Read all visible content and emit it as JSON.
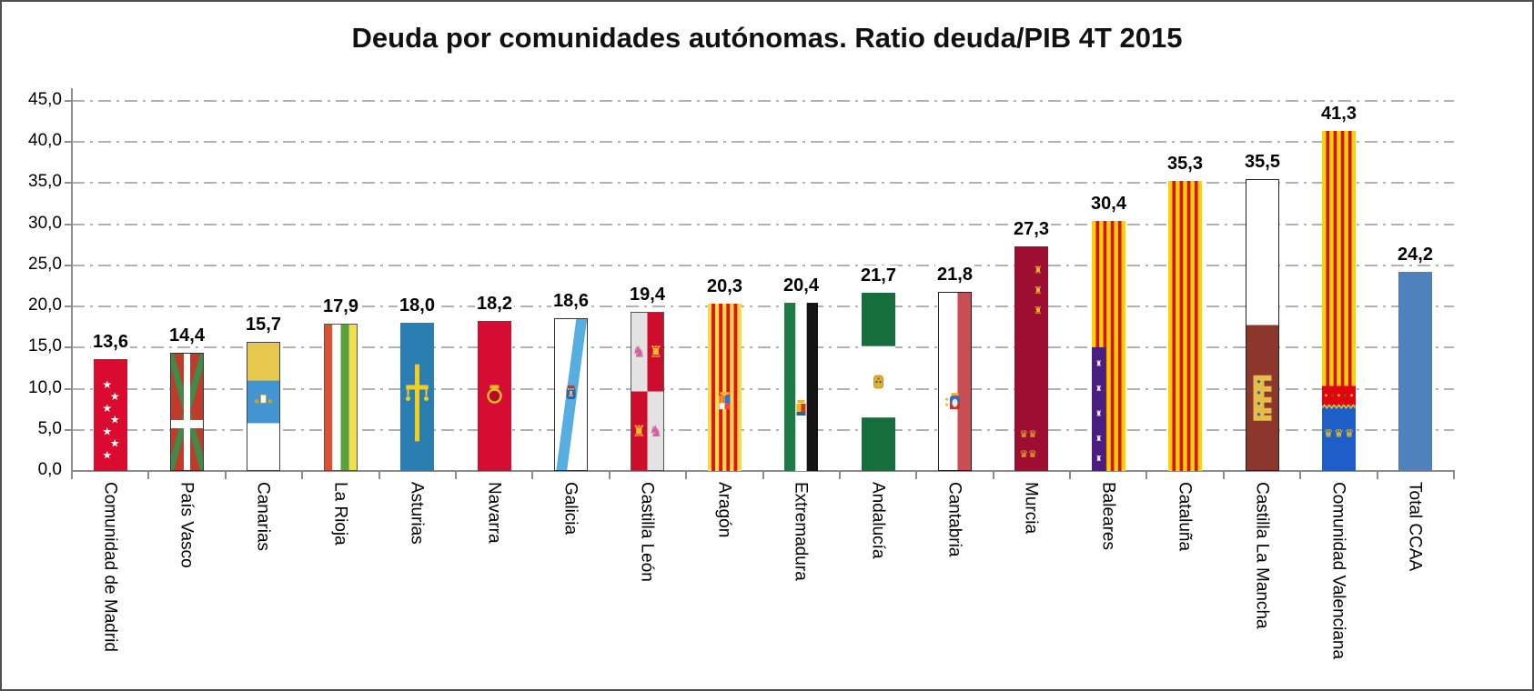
{
  "chart_data": {
    "type": "bar",
    "title": "Deuda por comunidades autónomas. Ratio deuda/PIB 4T 2015",
    "xlabel": "",
    "ylabel": "",
    "ylim": [
      0,
      45
    ],
    "ytick_step": 5,
    "ytick_labels": [
      "0,0",
      "5,0",
      "10,0",
      "15,0",
      "20,0",
      "25,0",
      "30,0",
      "35,0",
      "40,0",
      "45,0"
    ],
    "grid": "horizontal dash-dot gray",
    "legend": "none",
    "value_label_format": "comma-decimal",
    "bar_fill_style": "regional flag of each autonomous community",
    "categories": [
      "Comunidad de Madrid",
      "País Vasco",
      "Canarias",
      "La Rioja",
      "Asturias",
      "Navarra",
      "Galicia",
      "Castilla León",
      "Aragón",
      "Extremadura",
      "Andalucía",
      "Cantabria",
      "Murcia",
      "Baleares",
      "Cataluña",
      "Castilla La Mancha",
      "Comunidad Valenciana",
      "Total CCAA"
    ],
    "values": [
      13.6,
      14.4,
      15.7,
      17.9,
      18.0,
      18.2,
      18.6,
      19.4,
      20.3,
      20.4,
      21.7,
      21.8,
      27.3,
      30.4,
      35.3,
      35.5,
      41.3,
      24.2
    ],
    "value_labels": [
      "13,6",
      "14,4",
      "15,7",
      "17,9",
      "18,0",
      "18,2",
      "18,6",
      "19,4",
      "20,3",
      "20,4",
      "21,7",
      "21,8",
      "27,3",
      "30,4",
      "35,3",
      "35,5",
      "41,3",
      "24,2"
    ],
    "bars": [
      {
        "name": "Comunidad de Madrid",
        "value": 13.6,
        "label": "13,6",
        "flag": "madrid"
      },
      {
        "name": "País Vasco",
        "value": 14.4,
        "label": "14,4",
        "flag": "pais-vasco"
      },
      {
        "name": "Canarias",
        "value": 15.7,
        "label": "15,7",
        "flag": "canarias"
      },
      {
        "name": "La Rioja",
        "value": 17.9,
        "label": "17,9",
        "flag": "la-rioja"
      },
      {
        "name": "Asturias",
        "value": 18.0,
        "label": "18,0",
        "flag": "asturias"
      },
      {
        "name": "Navarra",
        "value": 18.2,
        "label": "18,2",
        "flag": "navarra"
      },
      {
        "name": "Galicia",
        "value": 18.6,
        "label": "18,6",
        "flag": "galicia"
      },
      {
        "name": "Castilla León",
        "value": 19.4,
        "label": "19,4",
        "flag": "castilla-leon"
      },
      {
        "name": "Aragón",
        "value": 20.3,
        "label": "20,3",
        "flag": "aragon"
      },
      {
        "name": "Extremadura",
        "value": 20.4,
        "label": "20,4",
        "flag": "extremadura"
      },
      {
        "name": "Andalucía",
        "value": 21.7,
        "label": "21,7",
        "flag": "andalucia"
      },
      {
        "name": "Cantabria",
        "value": 21.8,
        "label": "21,8",
        "flag": "cantabria"
      },
      {
        "name": "Murcia",
        "value": 27.3,
        "label": "27,3",
        "flag": "murcia"
      },
      {
        "name": "Baleares",
        "value": 30.4,
        "label": "30,4",
        "flag": "baleares"
      },
      {
        "name": "Cataluña",
        "value": 35.3,
        "label": "35,3",
        "flag": "cataluna"
      },
      {
        "name": "Castilla La Mancha",
        "value": 35.5,
        "label": "35,5",
        "flag": "castilla-la-mancha"
      },
      {
        "name": "Comunidad Valenciana",
        "value": 41.3,
        "label": "41,3",
        "flag": "comunidad-valenciana"
      },
      {
        "name": "Total CCAA",
        "value": 24.2,
        "label": "24,2",
        "flag": "total-ccaa"
      }
    ],
    "colors": {
      "total_bar": "#4F81BD",
      "axis": "#8C8C8C",
      "gridline": "#B2B2B2",
      "title_text": "#111111",
      "value_text": "#000000"
    }
  }
}
